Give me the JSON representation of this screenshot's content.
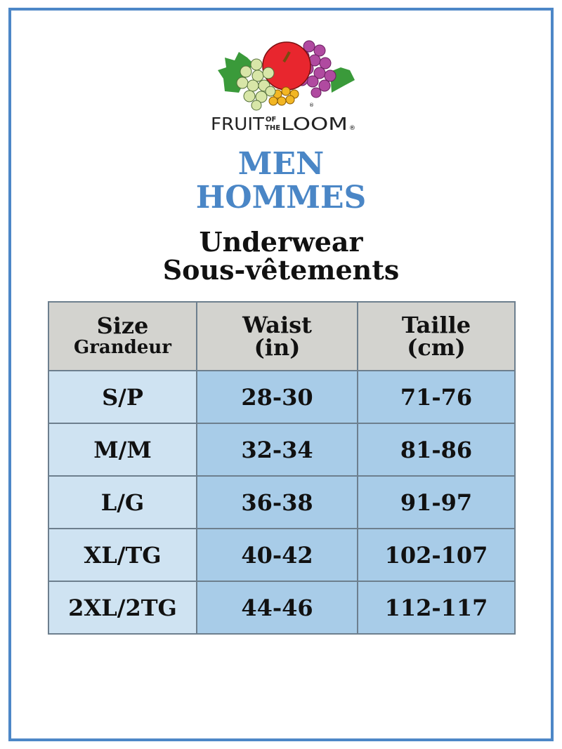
{
  "brand": {
    "logo_text": "FRUIT OF THE LOOM",
    "registered": "®"
  },
  "heading": {
    "line1": "MEN",
    "line2": "HOMMES"
  },
  "subheading": {
    "line1": "Underwear",
    "line2": "Sous-vêtements"
  },
  "colors": {
    "frame": "#4d87c7",
    "heading": "#4a86c6",
    "header_bg": "#d3d3cf",
    "size_col_bg": "#cfe3f2",
    "value_bg": "#a8cce8"
  },
  "table": {
    "headers": [
      {
        "line1": "Size",
        "line2": "Grandeur"
      },
      {
        "line1": "Waist",
        "line2": "(in)"
      },
      {
        "line1": "Taille",
        "line2": "(cm)"
      }
    ],
    "rows": [
      [
        "S/P",
        "28-30",
        "71-76"
      ],
      [
        "M/M",
        "32-34",
        "81-86"
      ],
      [
        "L/G",
        "36-38",
        "91-97"
      ],
      [
        "XL/TG",
        "40-42",
        "102-107"
      ],
      [
        "2XL/2TG",
        "44-46",
        "112-117"
      ]
    ]
  }
}
